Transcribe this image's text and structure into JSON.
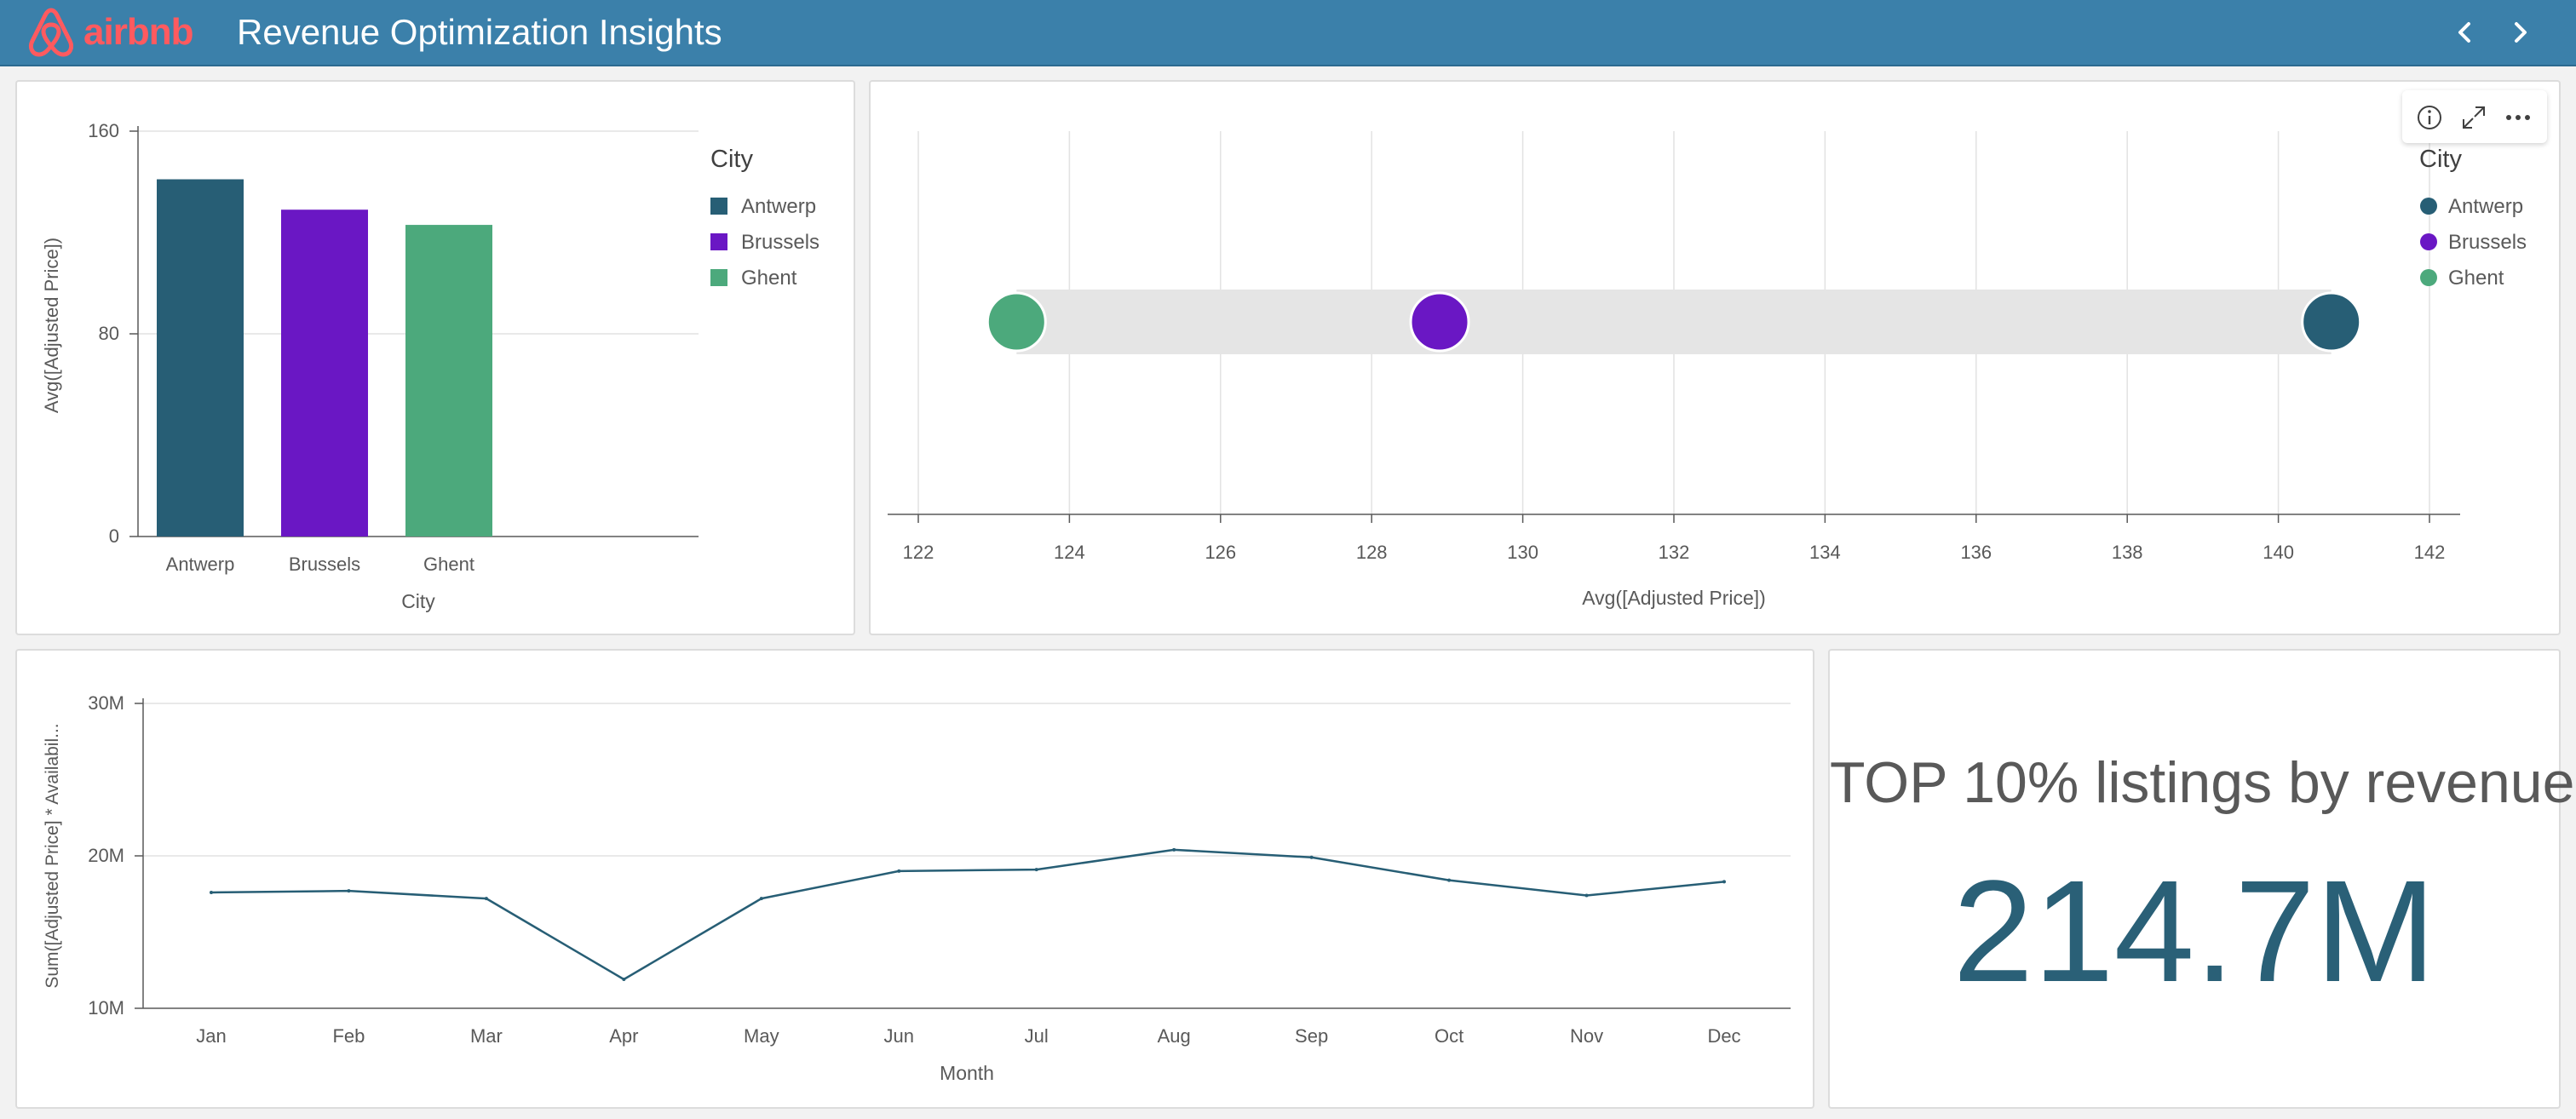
{
  "header": {
    "logo_text": "airbnb",
    "title": "Revenue Optimization Insights",
    "nav_prev_icon": "chevron-left-icon",
    "nav_next_icon": "chevron-right-icon",
    "background_color": "#3b80aa",
    "logo_color": "#ff5a5f"
  },
  "colors": {
    "Antwerp": "#275e75",
    "Brussels": "#6a17c4",
    "Ghent": "#4ca97c"
  },
  "bar_chart": {
    "legend_title": "City",
    "legend_items": [
      "Antwerp",
      "Brussels",
      "Ghent"
    ]
  },
  "distribution_chart": {
    "legend_title": "City",
    "legend_items": [
      "Antwerp",
      "Brussels",
      "Ghent"
    ],
    "toolbar": [
      "info-icon",
      "expand-icon",
      "more-icon"
    ]
  },
  "line_chart": {},
  "kpi": {
    "title": "TOP 10% listings by revenue",
    "value": "214.7M"
  },
  "chart_data": [
    {
      "type": "bar",
      "categories": [
        "Antwerp",
        "Brussels",
        "Ghent"
      ],
      "values": [
        141,
        129,
        123
      ],
      "xlabel": "City",
      "ylabel": "Avg([Adjusted Price])",
      "ylim": [
        0,
        160
      ],
      "yticks": [
        0,
        80,
        160
      ],
      "grid": true,
      "legend": "right"
    },
    {
      "type": "scatter",
      "series": [
        {
          "name": "Antwerp",
          "values": [
            140.7
          ]
        },
        {
          "name": "Brussels",
          "values": [
            128.9
          ]
        },
        {
          "name": "Ghent",
          "values": [
            123.3
          ]
        }
      ],
      "xlabel": "Avg([Adjusted Price])",
      "xlim": [
        122,
        142
      ],
      "xticks": [
        122,
        124,
        126,
        128,
        130,
        132,
        134,
        136,
        138,
        140,
        142
      ],
      "grid": true,
      "legend": "right"
    },
    {
      "type": "line",
      "x": [
        "Jan",
        "Feb",
        "Mar",
        "Apr",
        "May",
        "Jun",
        "Jul",
        "Aug",
        "Sep",
        "Oct",
        "Nov",
        "Dec"
      ],
      "series": [
        {
          "values": [
            17.6,
            17.7,
            17.2,
            11.9,
            17.2,
            19.0,
            19.1,
            20.4,
            19.9,
            18.4,
            17.4,
            18.3
          ]
        }
      ],
      "xlabel": "Month",
      "ylabel": "Sum([Adjusted Price] * Availabil...",
      "ylim": [
        10,
        30
      ],
      "yticks": [
        10,
        20,
        30
      ],
      "ytick_labels": [
        "10M",
        "20M",
        "30M"
      ],
      "grid": true
    }
  ]
}
